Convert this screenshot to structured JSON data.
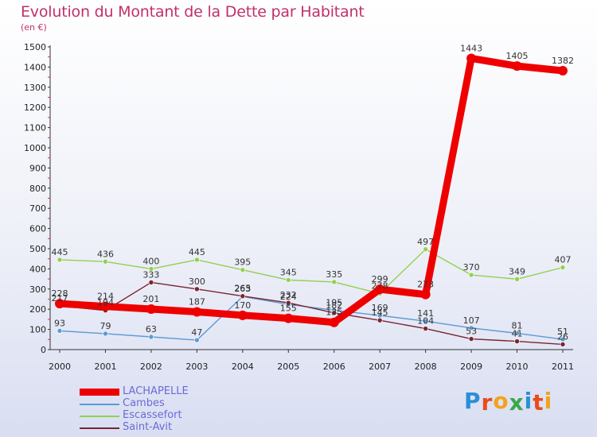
{
  "title": "Evolution du Montant de la Dette par Habitant",
  "subtitle": "(en €)",
  "logo": {
    "text": "Proxiti",
    "colors": [
      "#2a8fd6",
      "#e84c1a",
      "#f3a21b",
      "#3aa84a",
      "#2a8fd6",
      "#e84c1a",
      "#f3a21b"
    ]
  },
  "chart_data": {
    "type": "line",
    "title": "Evolution du Montant de la Dette par Habitant",
    "ylabel": "(en €)",
    "x": [
      "2000",
      "2001",
      "2002",
      "2003",
      "2004",
      "2005",
      "2006",
      "2007",
      "2008",
      "2009",
      "2010",
      "2011"
    ],
    "ylim": [
      0,
      1500
    ],
    "yticks": [
      "0",
      "100",
      "200",
      "300",
      "400",
      "500",
      "600",
      "700",
      "800",
      "900",
      "1000",
      "1100",
      "1200",
      "1300",
      "1400",
      "1500"
    ],
    "grid": false,
    "legend": "bottom-left",
    "series": [
      {
        "name": "LACHAPELLE",
        "color": "#ee0000",
        "values": [
          228,
          214,
          201,
          187,
          170,
          155,
          135,
          299,
          273,
          1443,
          1405,
          1382
        ],
        "labels": [
          "228",
          "214",
          "201",
          "187",
          "170",
          "155",
          "135",
          "299",
          "273",
          "1443",
          "1405",
          "1382"
        ]
      },
      {
        "name": "Cambes",
        "color": "#5b9bd5",
        "values": [
          93,
          79,
          63,
          47,
          263,
          224,
          195,
          169,
          141,
          107,
          81,
          51
        ],
        "labels": [
          "93",
          "79",
          "63",
          "47",
          "263",
          "224",
          "195",
          "169",
          "141",
          "107",
          "81",
          "51"
        ]
      },
      {
        "name": "Escassefort",
        "color": "#92d050",
        "values": [
          445,
          436,
          400,
          445,
          395,
          345,
          335,
          278,
          497,
          370,
          349,
          407
        ],
        "labels": [
          "445",
          "436",
          "400",
          "445",
          "395",
          "345",
          "335",
          "278",
          "497",
          "370",
          "349",
          "407"
        ]
      },
      {
        "name": "Saint-Avit",
        "color": "#7b2430",
        "values": [
          217,
          194,
          333,
          300,
          265,
          232,
          182,
          145,
          104,
          53,
          41,
          26
        ],
        "labels": [
          "217",
          "194",
          "333",
          "300",
          "265",
          "232",
          "182",
          "145",
          "104",
          "53",
          "41",
          "26"
        ]
      }
    ]
  }
}
